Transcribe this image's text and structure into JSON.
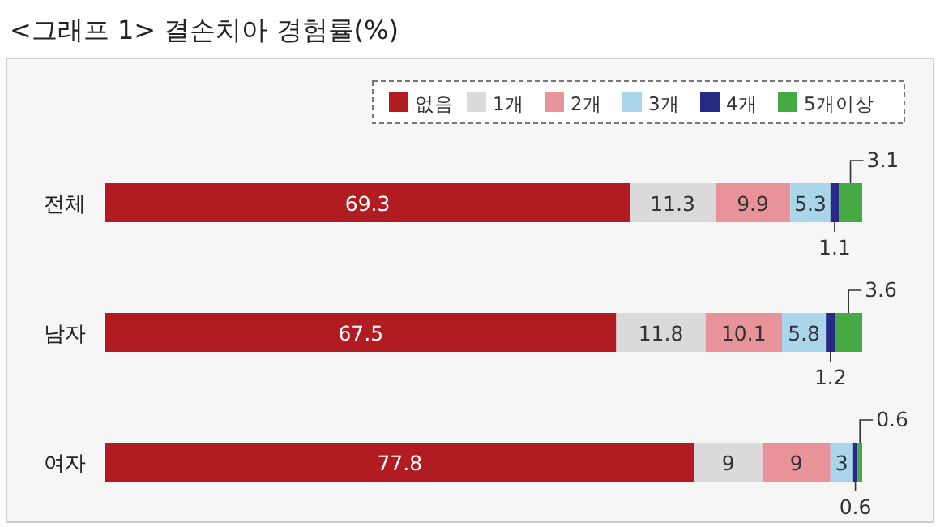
{
  "chart_data": {
    "type": "bar",
    "title": "<그래프 1> 결손치아 경험률(%)",
    "orientation": "horizontal",
    "stacked": true,
    "data_labels": true,
    "legend": "top right",
    "categories": [
      "전체",
      "남자",
      "여자"
    ],
    "series": [
      {
        "name": "없음",
        "color": "#b01c22",
        "values": [
          69.3,
          67.5,
          77.8
        ]
      },
      {
        "name": "1개",
        "color": "#dadada",
        "values": [
          11.3,
          11.8,
          9
        ]
      },
      {
        "name": "2개",
        "color": "#e8929a",
        "values": [
          9.9,
          10.1,
          9
        ]
      },
      {
        "name": "3개",
        "color": "#a9d6ea",
        "values": [
          5.3,
          5.8,
          3
        ]
      },
      {
        "name": "4개",
        "color": "#262a86",
        "values": [
          1.1,
          1.2,
          0.6
        ]
      },
      {
        "name": "5개이상",
        "color": "#46a943",
        "values": [
          3.1,
          3.6,
          0.6
        ]
      }
    ]
  }
}
